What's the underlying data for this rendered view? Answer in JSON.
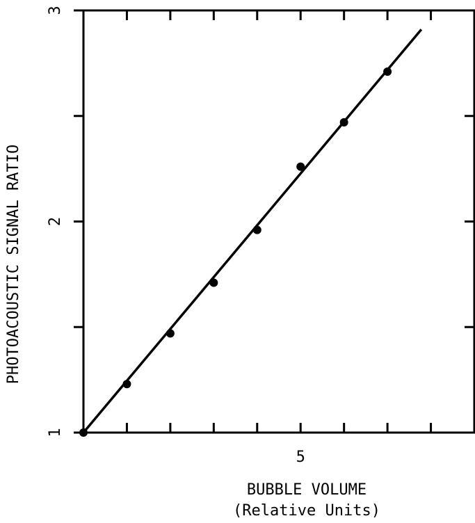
{
  "chart_data": {
    "type": "scatter",
    "ylabel": "PHOTOACOUSTIC SIGNAL RATIO",
    "xlabel": "BUBBLE VOLUME",
    "xlabel_sub": "(Relative Units)",
    "x": [
      0,
      1,
      2,
      3,
      4,
      5,
      6,
      7
    ],
    "values": [
      1.0,
      1.23,
      1.47,
      1.71,
      1.96,
      2.26,
      2.47,
      2.71
    ],
    "fit_line": {
      "x": [
        0,
        7.78
      ],
      "y": [
        1,
        2.91
      ]
    },
    "color": "#000000",
    "xlim": [
      0,
      9
    ],
    "ylim": [
      1,
      3
    ],
    "xticks": [
      5
    ],
    "xminor_ticks": [
      1,
      2,
      3,
      4,
      6,
      7,
      8
    ],
    "yticks": [
      1,
      2,
      3
    ],
    "yminor_ticks": [
      1.5,
      2.5
    ],
    "grid": false
  }
}
